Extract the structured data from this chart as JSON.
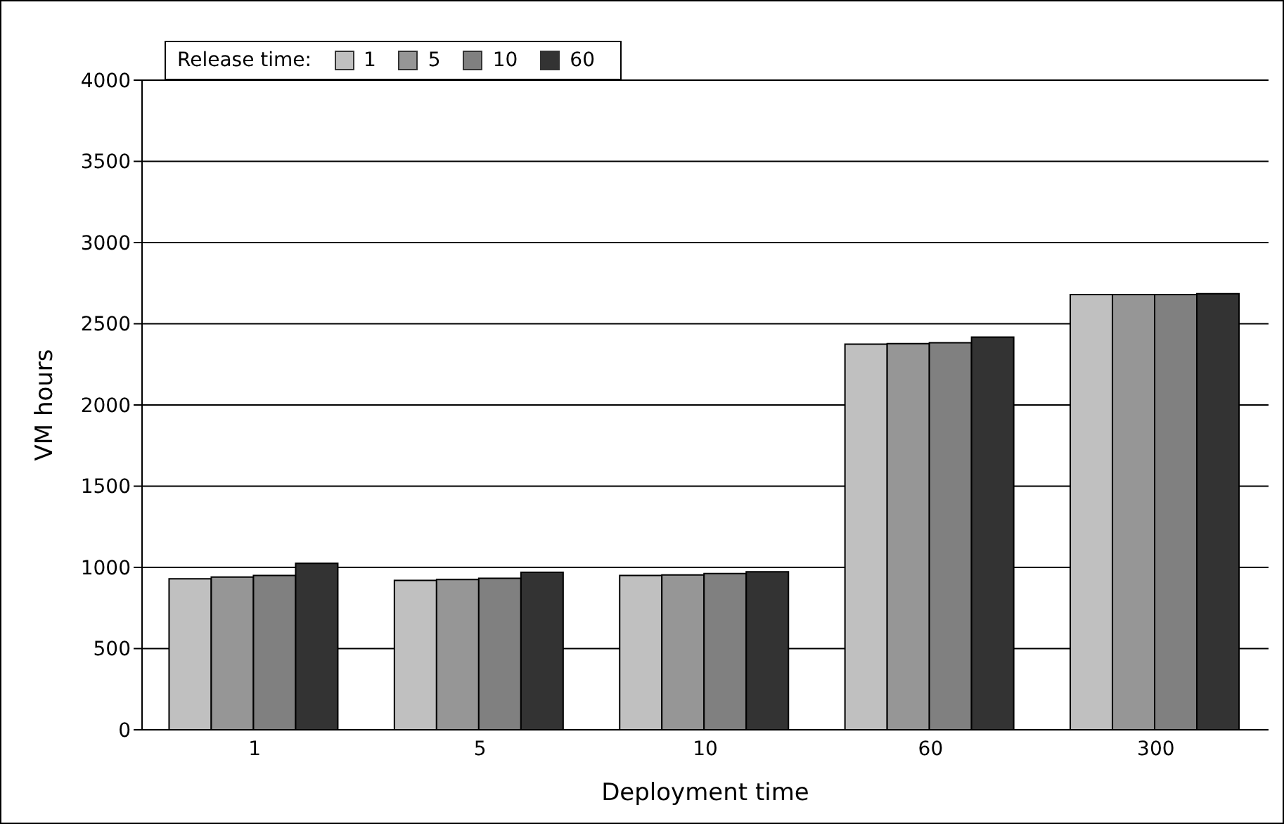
{
  "chart_data": {
    "type": "bar",
    "xlabel": "Deployment time",
    "ylabel": "VM hours",
    "legend_title": "Release time:",
    "categories": [
      "1",
      "5",
      "10",
      "60",
      "300"
    ],
    "series": [
      {
        "name": "1",
        "color": "#c0c0c0",
        "values": [
          930,
          920,
          950,
          2375,
          2680
        ]
      },
      {
        "name": "5",
        "color": "#969696",
        "values": [
          940,
          925,
          953,
          2378,
          2680
        ]
      },
      {
        "name": "10",
        "color": "#808080",
        "values": [
          950,
          933,
          962,
          2383,
          2680
        ]
      },
      {
        "name": "60",
        "color": "#333333",
        "values": [
          1025,
          970,
          973,
          2418,
          2685
        ]
      }
    ],
    "ylim": [
      0,
      4000
    ],
    "yticks": [
      0,
      500,
      1000,
      1500,
      2000,
      2500,
      3000,
      3500,
      4000
    ],
    "grid": "y",
    "legend": "top left"
  }
}
